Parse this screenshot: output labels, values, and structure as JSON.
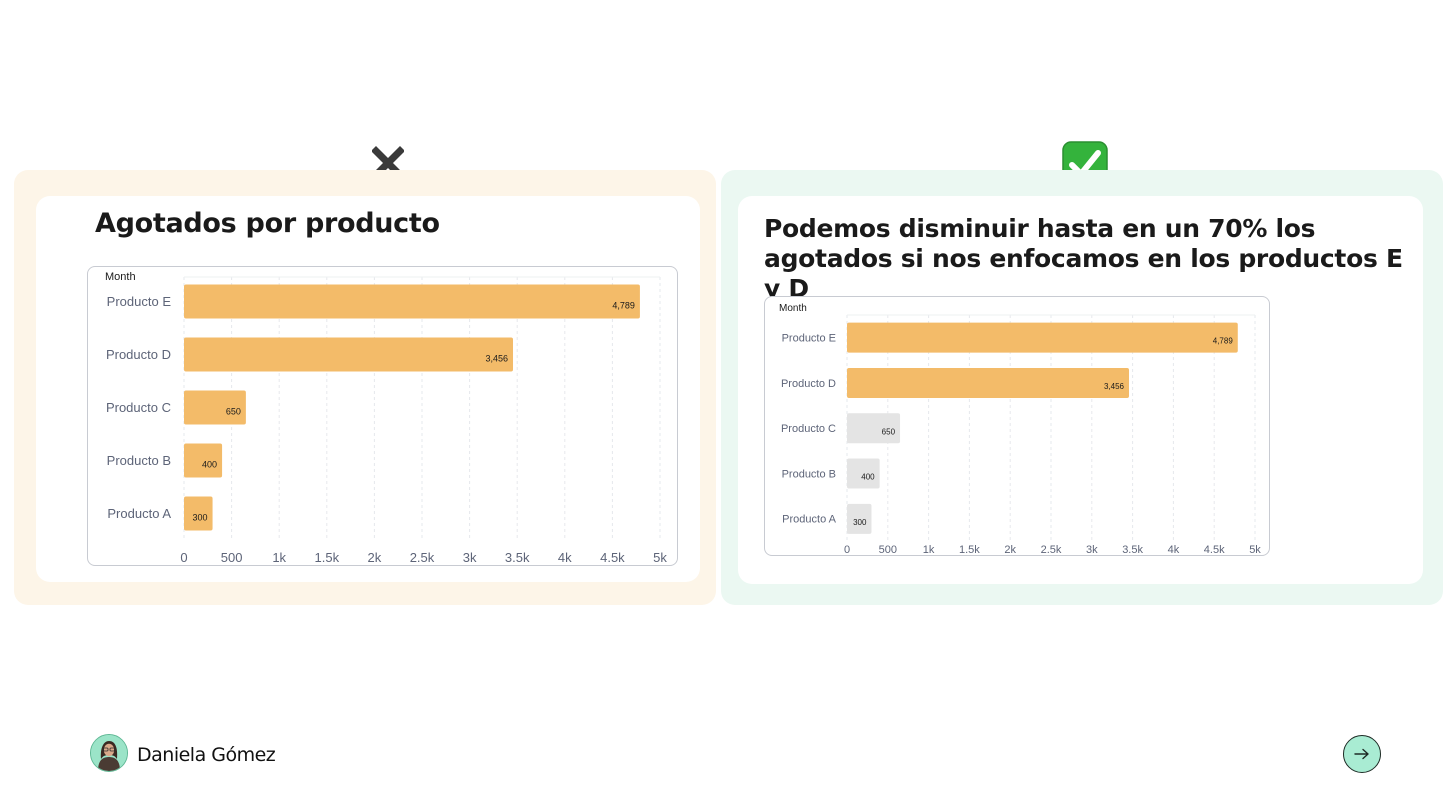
{
  "left_panel": {
    "title": "Agotados por producto",
    "status_icon": "cross-mark-icon"
  },
  "right_panel": {
    "title": "Podemos disminuir hasta en un 70% los agotados si nos enfocamos en los productos E y D",
    "status_icon": "check-mark-icon"
  },
  "colors": {
    "bar_highlight": "#f3bb69",
    "bar_muted": "#e4e4e4",
    "left_panel_bg": "#fdf5e8",
    "right_panel_bg": "#ebf8f2",
    "accent_green": "#a9ecd3"
  },
  "chart_data": [
    {
      "type": "bar",
      "orientation": "horizontal",
      "title": "",
      "ylabel": "Month",
      "categories": [
        "Producto E",
        "Producto D",
        "Producto C",
        "Producto B",
        "Producto A"
      ],
      "values": [
        4789,
        3456,
        650,
        400,
        300
      ],
      "value_labels": [
        "4,789",
        "3,456",
        "650",
        "400",
        "300"
      ],
      "xlim": [
        0,
        5000
      ],
      "ticks": [
        "0",
        "500",
        "1k",
        "1.5k",
        "2k",
        "2.5k",
        "3k",
        "3.5k",
        "4k",
        "4.5k",
        "5k"
      ],
      "bar_colors": [
        "#f3bb69",
        "#f3bb69",
        "#f3bb69",
        "#f3bb69",
        "#f3bb69"
      ],
      "grid": true
    },
    {
      "type": "bar",
      "orientation": "horizontal",
      "title": "",
      "ylabel": "Month",
      "categories": [
        "Producto E",
        "Producto D",
        "Producto C",
        "Producto B",
        "Producto A"
      ],
      "values": [
        4789,
        3456,
        650,
        400,
        300
      ],
      "value_labels": [
        "4,789",
        "3,456",
        "650",
        "400",
        "300"
      ],
      "xlim": [
        0,
        5000
      ],
      "ticks": [
        "0",
        "500",
        "1k",
        "1.5k",
        "2k",
        "2.5k",
        "3k",
        "3.5k",
        "4k",
        "4.5k",
        "5k"
      ],
      "bar_colors": [
        "#f3bb69",
        "#f3bb69",
        "#e4e4e4",
        "#e4e4e4",
        "#e4e4e4"
      ],
      "grid": true
    }
  ],
  "footer": {
    "author": "Daniela Gómez",
    "avatar_icon": "avatar-photo",
    "next_icon": "arrow-right-icon"
  }
}
